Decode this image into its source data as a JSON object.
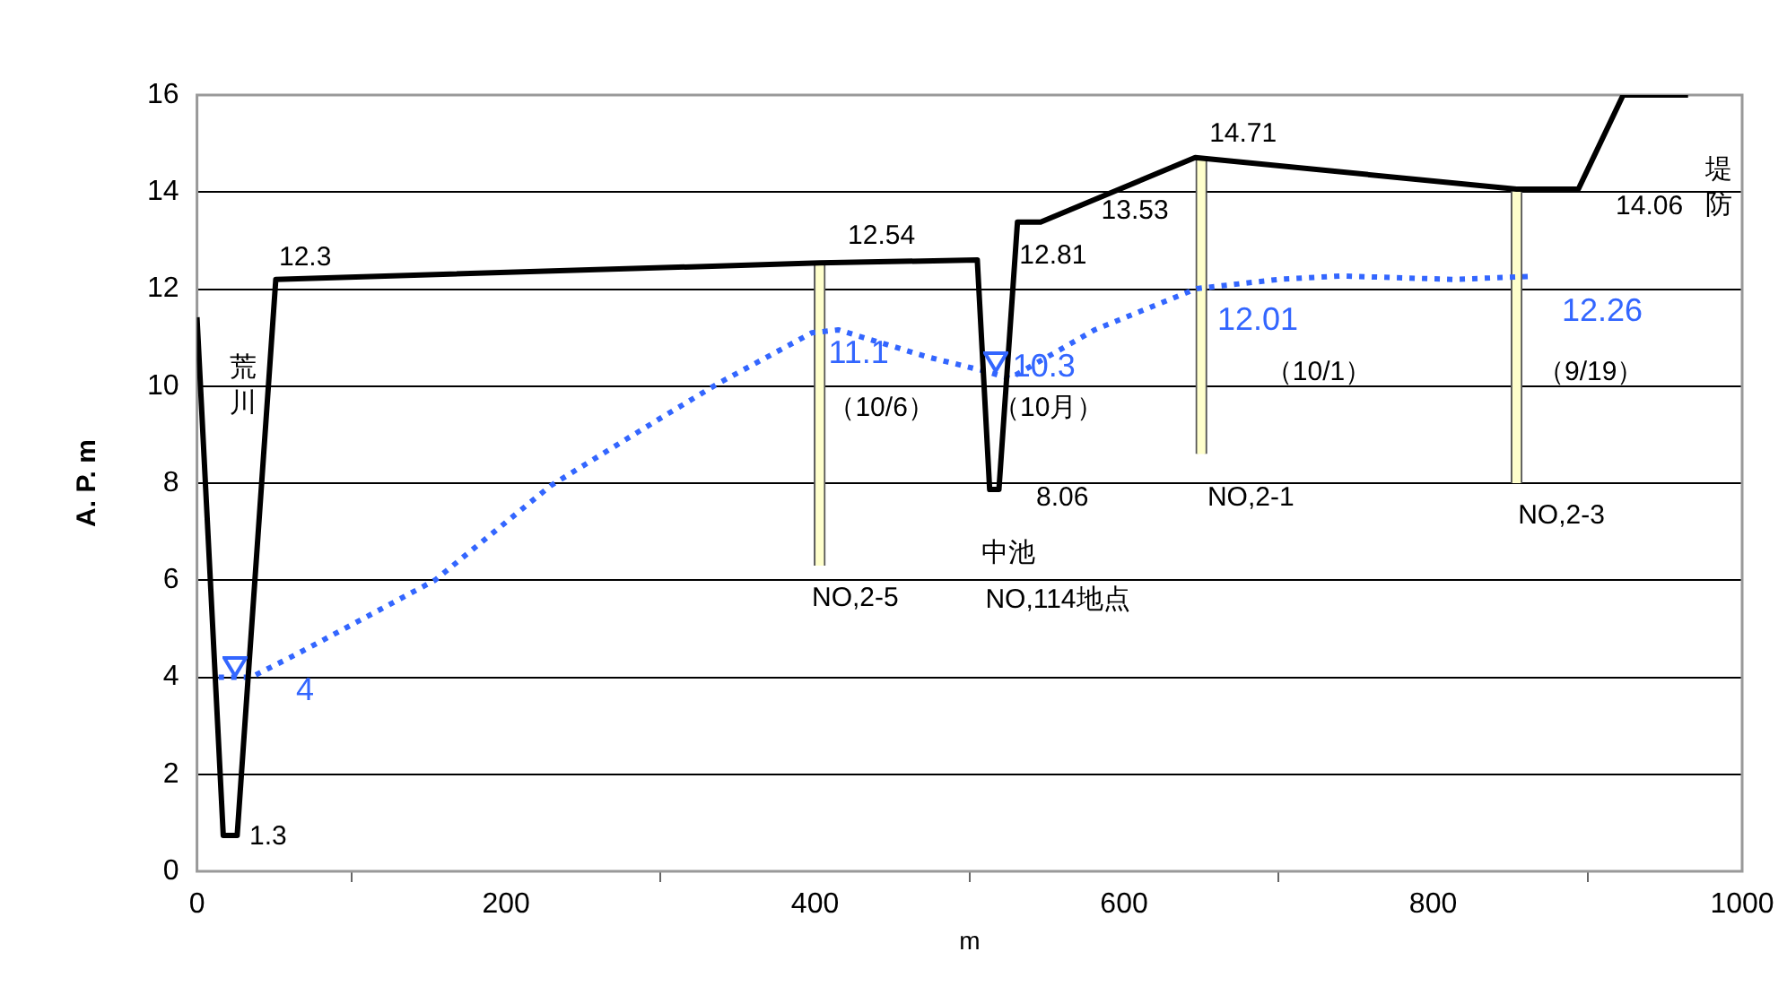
{
  "chart_data": {
    "type": "line",
    "xlabel": "m",
    "ylabel": "A. P. m",
    "xlim": [
      0,
      1000
    ],
    "xticks": [
      0,
      200,
      400,
      600,
      800,
      1000
    ],
    "ylim": [
      0,
      16
    ],
    "yticks": [
      0,
      2,
      4,
      6,
      8,
      10,
      12,
      14,
      16
    ],
    "grid": "y",
    "legend": false,
    "marker": "none",
    "series": [
      {
        "color": "#000000",
        "line_style": "solid",
        "x": [
          0,
          17,
          26,
          51,
          403,
          505,
          513,
          519,
          531,
          546,
          646,
          854,
          894,
          923,
          965
        ],
        "values": [
          11.42,
          0.74,
          0.74,
          12.2,
          12.54,
          12.6,
          7.87,
          7.87,
          13.38,
          13.38,
          14.71,
          14.06,
          14.06,
          16,
          16
        ]
      },
      {
        "color": "#3366ff",
        "line_style": "dotted",
        "x": [
          14,
          35,
          66,
          154,
          229,
          298,
          337,
          398,
          415,
          473,
          511,
          526,
          581,
          647,
          700,
          740,
          813,
          863
        ],
        "values": [
          4,
          4,
          4.5,
          6.0,
          7.95,
          9.3,
          10.05,
          11.1,
          11.16,
          10.6,
          10.3,
          10.16,
          11.16,
          12.01,
          12.2,
          12.27,
          12.2,
          12.26
        ],
        "value_labels": [
          null,
          "4",
          null,
          null,
          null,
          null,
          null,
          "11.1",
          null,
          null,
          "10.3",
          null,
          null,
          "12.01",
          null,
          null,
          null,
          "12.26"
        ]
      },
      {
        "type": "bar",
        "color": "#ffffcc",
        "x": [
          403,
          650,
          854
        ],
        "base": [
          6.3,
          8.6,
          8.0
        ],
        "values": [
          6.24,
          6.11,
          6.06
        ]
      }
    ],
    "annotations": [
      "1.3",
      "12.3",
      "12.54",
      "12.81",
      "13.53",
      "14.71",
      "14.06",
      "8.06",
      "荒川",
      "堤防",
      "（10/6）",
      "（10月）",
      "（10/1）",
      "（9/19）",
      "NO,2-5",
      "中池",
      "NO,114地点",
      "NO,2-1",
      "NO,2-3"
    ]
  }
}
